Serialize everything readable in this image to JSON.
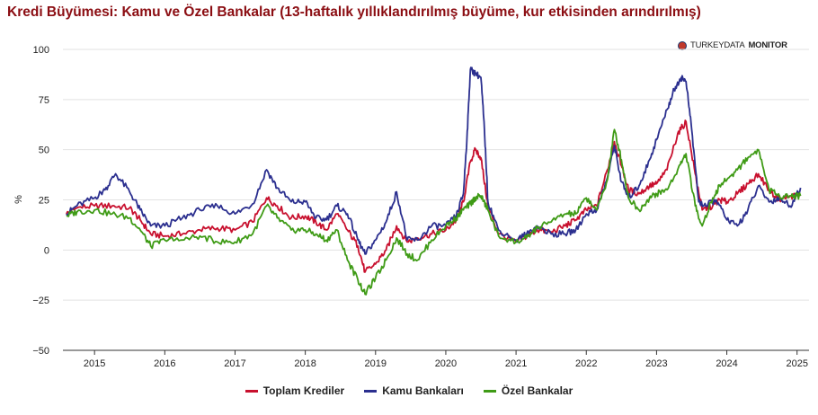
{
  "title": "Kredi Büyümesi: Kamu ve Özel Bankalar (13-haftalık yıllıklandırılmış büyüme, kur etkisinden arındırılmış)",
  "brand": {
    "prefix": "TURKEYDATA",
    "suffix": "MONITOR",
    "icon": "turkeydatamonitor-logo-icon"
  },
  "chart_data": {
    "type": "line",
    "ylabel": "%",
    "ylim": [
      -50,
      100
    ],
    "yticks": [
      100,
      75,
      50,
      25,
      0,
      -25,
      -50
    ],
    "ytick_labels": [
      "100",
      "75",
      "50",
      "25",
      "0",
      "−25",
      "−50"
    ],
    "xlim": [
      2014.55,
      2025.17
    ],
    "xticks": [
      2015,
      2016,
      2017,
      2018,
      2019,
      2020,
      2021,
      2022,
      2023,
      2024,
      2025
    ],
    "xtick_labels": [
      "2015",
      "2016",
      "2017",
      "2018",
      "2019",
      "2020",
      "2021",
      "2022",
      "2023",
      "2024",
      "2025"
    ],
    "grid": true,
    "legend_position": "bottom-center",
    "series": [
      {
        "name": "Toplam Krediler",
        "color": "#c8102e",
        "x": [
          2014.6,
          2014.75,
          2015.0,
          2015.25,
          2015.5,
          2015.65,
          2015.8,
          2016.0,
          2016.25,
          2016.5,
          2016.75,
          2017.0,
          2017.25,
          2017.45,
          2017.6,
          2017.8,
          2018.0,
          2018.15,
          2018.3,
          2018.45,
          2018.6,
          2018.75,
          2018.85,
          2019.0,
          2019.15,
          2019.3,
          2019.45,
          2019.6,
          2019.8,
          2020.0,
          2020.15,
          2020.25,
          2020.35,
          2020.42,
          2020.5,
          2020.6,
          2020.75,
          2021.0,
          2021.15,
          2021.3,
          2021.5,
          2021.7,
          2021.85,
          2022.0,
          2022.15,
          2022.3,
          2022.4,
          2022.5,
          2022.6,
          2022.75,
          2022.9,
          2023.0,
          2023.15,
          2023.3,
          2023.42,
          2023.55,
          2023.65,
          2023.8,
          2023.9,
          2024.0,
          2024.15,
          2024.3,
          2024.45,
          2024.6,
          2024.75,
          2024.9,
          2025.05
        ],
        "y": [
          18,
          21,
          22,
          22,
          21,
          15,
          8,
          7,
          8,
          10,
          11,
          10,
          14,
          26,
          22,
          16,
          17,
          14,
          10,
          18,
          10,
          2,
          -11,
          -7,
          0,
          12,
          4,
          6,
          8,
          10,
          15,
          24,
          44,
          50,
          46,
          22,
          8,
          4,
          7,
          10,
          9,
          12,
          15,
          20,
          22,
          40,
          54,
          42,
          30,
          28,
          32,
          33,
          40,
          58,
          64,
          38,
          20,
          22,
          25,
          24,
          28,
          33,
          38,
          30,
          25,
          27,
          27
        ]
      },
      {
        "name": "Kamu Bankaları",
        "color": "#2b2f8f",
        "x": [
          2014.6,
          2014.75,
          2015.0,
          2015.15,
          2015.3,
          2015.5,
          2015.65,
          2015.8,
          2016.0,
          2016.25,
          2016.5,
          2016.75,
          2017.0,
          2017.25,
          2017.45,
          2017.6,
          2017.8,
          2018.0,
          2018.15,
          2018.3,
          2018.45,
          2018.6,
          2018.75,
          2018.85,
          2019.0,
          2019.15,
          2019.3,
          2019.45,
          2019.6,
          2019.8,
          2020.0,
          2020.15,
          2020.25,
          2020.3,
          2020.35,
          2020.42,
          2020.5,
          2020.55,
          2020.6,
          2020.75,
          2021.0,
          2021.15,
          2021.3,
          2021.5,
          2021.7,
          2021.85,
          2022.0,
          2022.15,
          2022.3,
          2022.4,
          2022.5,
          2022.6,
          2022.75,
          2022.9,
          2023.0,
          2023.15,
          2023.25,
          2023.35,
          2023.42,
          2023.5,
          2023.6,
          2023.7,
          2023.85,
          2024.0,
          2024.15,
          2024.3,
          2024.45,
          2024.6,
          2024.75,
          2024.9,
          2025.05
        ],
        "y": [
          18,
          22,
          26,
          30,
          38,
          29,
          20,
          12,
          12,
          16,
          20,
          22,
          18,
          23,
          40,
          31,
          24,
          24,
          16,
          15,
          22,
          18,
          5,
          -2,
          5,
          14,
          29,
          5,
          5,
          12,
          12,
          17,
          28,
          55,
          90,
          88,
          86,
          60,
          24,
          10,
          5,
          8,
          12,
          8,
          8,
          10,
          18,
          20,
          36,
          52,
          34,
          26,
          32,
          45,
          55,
          70,
          80,
          86,
          84,
          60,
          24,
          22,
          25,
          15,
          12,
          20,
          32,
          24,
          26,
          22,
          31
        ]
      },
      {
        "name": "Özel Bankalar",
        "color": "#3f9b16",
        "x": [
          2014.6,
          2014.75,
          2015.0,
          2015.25,
          2015.5,
          2015.65,
          2015.8,
          2016.0,
          2016.25,
          2016.5,
          2016.75,
          2017.0,
          2017.25,
          2017.45,
          2017.6,
          2017.8,
          2018.0,
          2018.15,
          2018.3,
          2018.45,
          2018.6,
          2018.75,
          2018.85,
          2019.0,
          2019.15,
          2019.3,
          2019.45,
          2019.6,
          2019.8,
          2020.0,
          2020.15,
          2020.25,
          2020.35,
          2020.42,
          2020.5,
          2020.6,
          2020.75,
          2021.0,
          2021.15,
          2021.3,
          2021.5,
          2021.7,
          2021.85,
          2022.0,
          2022.15,
          2022.3,
          2022.4,
          2022.5,
          2022.6,
          2022.75,
          2022.9,
          2023.0,
          2023.15,
          2023.3,
          2023.42,
          2023.55,
          2023.65,
          2023.8,
          2023.9,
          2024.0,
          2024.15,
          2024.3,
          2024.45,
          2024.6,
          2024.75,
          2024.9,
          2025.05
        ],
        "y": [
          17,
          19,
          20,
          18,
          16,
          10,
          2,
          5,
          5,
          7,
          4,
          4,
          8,
          22,
          16,
          10,
          10,
          8,
          5,
          10,
          -5,
          -15,
          -22,
          -14,
          -5,
          6,
          -2,
          -5,
          5,
          12,
          16,
          20,
          23,
          26,
          27,
          20,
          7,
          4,
          6,
          11,
          14,
          18,
          18,
          26,
          20,
          35,
          60,
          45,
          26,
          20,
          26,
          28,
          30,
          40,
          48,
          22,
          12,
          26,
          32,
          35,
          40,
          46,
          50,
          30,
          27,
          27,
          27
        ]
      }
    ]
  }
}
